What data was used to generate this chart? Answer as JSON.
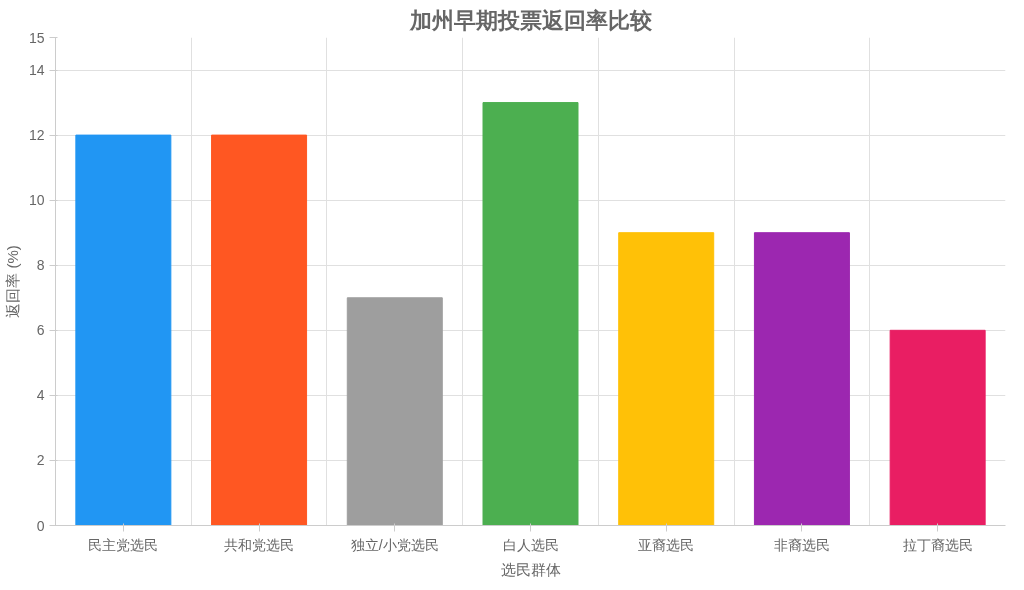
{
  "chart_data": {
    "type": "bar",
    "title": "加州早期投票返回率比较",
    "xlabel": "选民群体",
    "ylabel": "返回率 (%)",
    "categories": [
      "民主党选民",
      "共和党选民",
      "独立/小党选民",
      "白人选民",
      "亚裔选民",
      "非裔选民",
      "拉丁裔选民"
    ],
    "values": [
      12,
      12,
      7,
      13,
      9,
      9,
      6
    ],
    "colors": [
      "#2196f3",
      "#ff5722",
      "#9e9e9e",
      "#4caf50",
      "#ffc107",
      "#9c27b0",
      "#e91e63"
    ],
    "ylim": [
      0,
      15
    ],
    "yticks": [
      0,
      2,
      4,
      6,
      8,
      10,
      12,
      14,
      15
    ],
    "grid": true
  }
}
